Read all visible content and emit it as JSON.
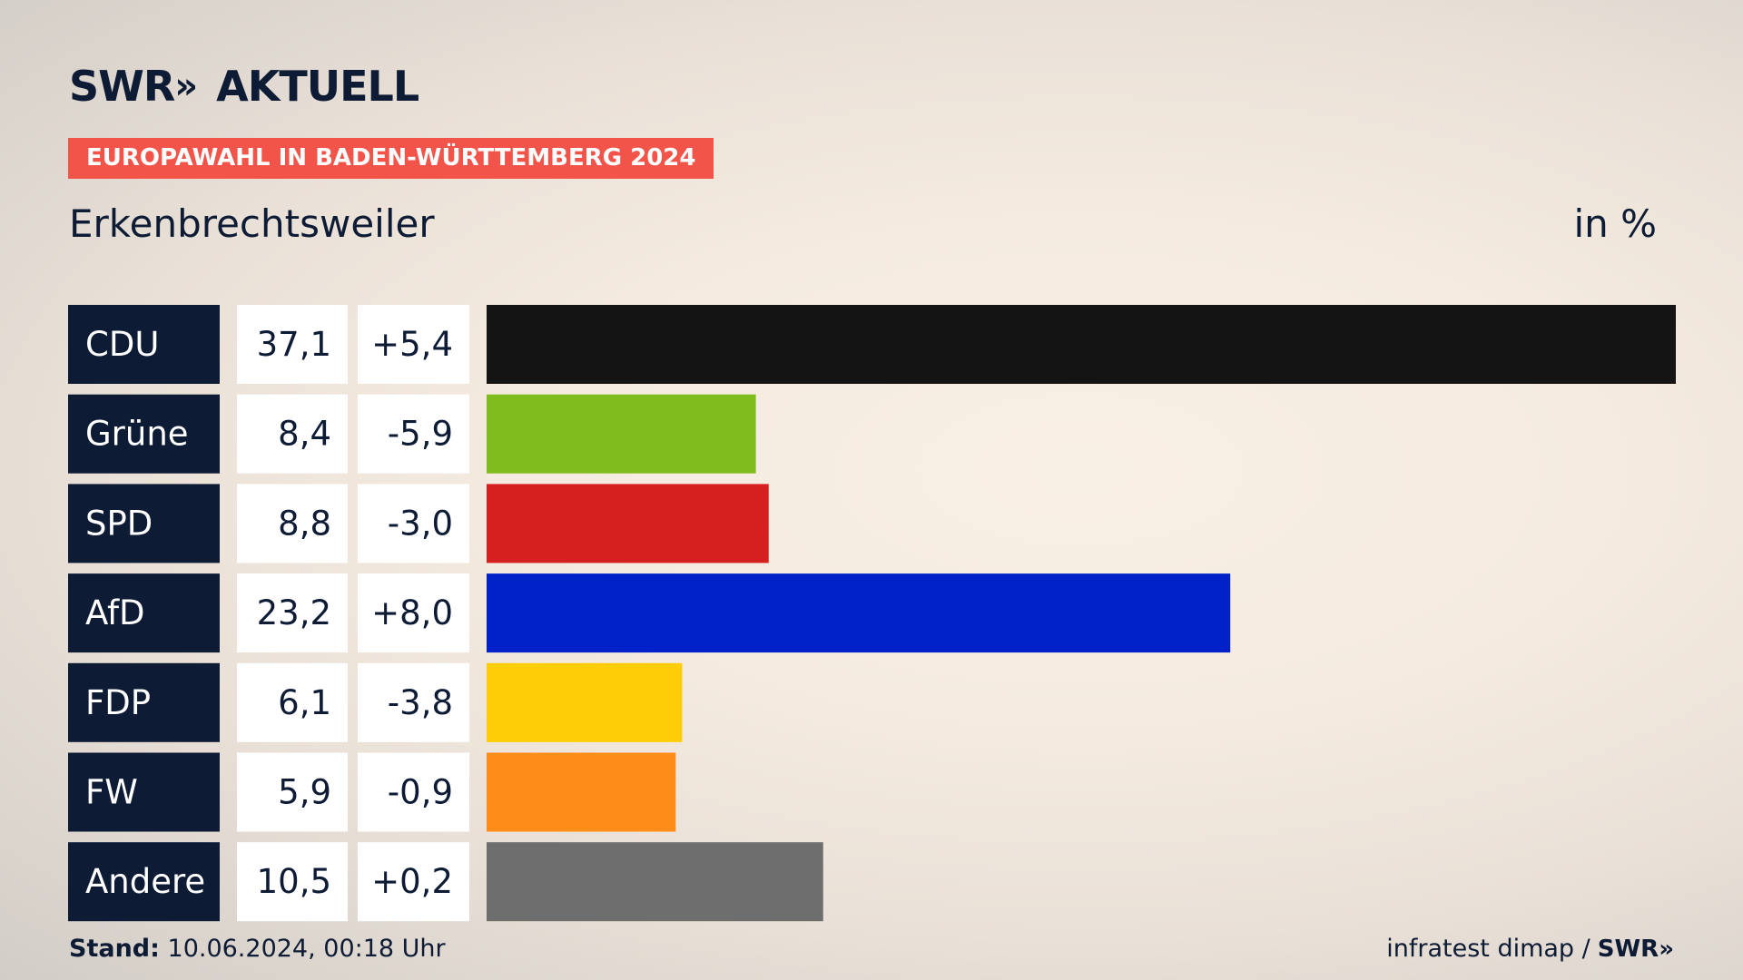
{
  "brand": {
    "logo_text": "SWR",
    "logo_chevrons": "»",
    "logo_suffix": "AKTUELL"
  },
  "badge": "EUROPAWAHL IN BADEN-WÜRTTEMBERG 2024",
  "place": "Erkenbrechtsweiler",
  "unit_label": "in %",
  "footer": {
    "stand_label": "Stand:",
    "stand_value": "10.06.2024, 00:18 Uhr",
    "source": "infratest dimap /",
    "source_logo": "SWR»"
  },
  "colors": {
    "label_bg": "#0d1b35",
    "badge_bg": "#f2544a"
  },
  "chart_data": {
    "type": "bar",
    "orientation": "horizontal",
    "categories": [
      "CDU",
      "Grüne",
      "SPD",
      "AfD",
      "FDP",
      "FW",
      "Andere"
    ],
    "values": [
      37.1,
      8.4,
      8.8,
      23.2,
      6.1,
      5.9,
      10.5
    ],
    "value_labels": [
      "37,1",
      "8,4",
      "8,8",
      "23,2",
      "6,1",
      "5,9",
      "10,5"
    ],
    "change_labels": [
      "+5,4",
      "-5,9",
      "-3,0",
      "+8,0",
      "-3,8",
      "-0,9",
      "+0,2"
    ],
    "changes": [
      5.4,
      -5.9,
      -3.0,
      8.0,
      -3.8,
      -0.9,
      0.2
    ],
    "bar_colors": [
      "#141414",
      "#7ebd1d",
      "#d61f1f",
      "#0021c8",
      "#ffcd05",
      "#fe8d17",
      "#6e6e6e"
    ],
    "xlim": [
      0,
      37.1
    ],
    "grid": false,
    "legend": "none"
  }
}
